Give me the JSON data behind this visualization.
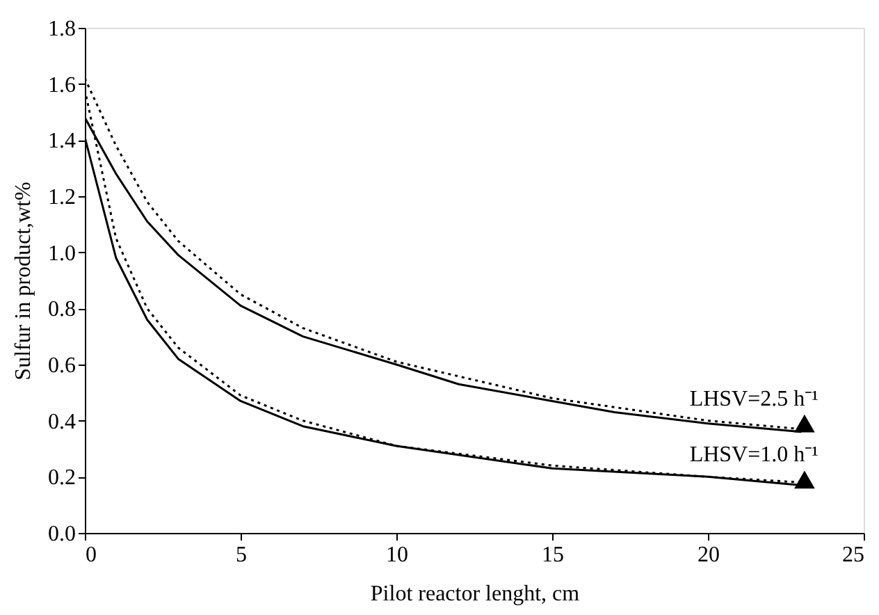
{
  "chart_data": {
    "type": "line",
    "xlabel": "Pilot reactor lenght, cm",
    "ylabel": "Sulfur  in product,wt%",
    "xlim": [
      0,
      25
    ],
    "xticks": [
      0,
      5,
      10,
      15,
      20,
      25
    ],
    "ylim": [
      0,
      1.8
    ],
    "yticks": [
      {
        "value": 0,
        "label": "0.0"
      },
      {
        "value": 0.2,
        "label": "0.2"
      },
      {
        "value": 0.4,
        "label": "0.4"
      },
      {
        "value": 0.6,
        "label": "0.6"
      },
      {
        "value": 0.8,
        "label": "0.8"
      },
      {
        "value": 1.0,
        "label": "1.0"
      },
      {
        "value": 1.2,
        "label": "1.2"
      },
      {
        "value": 1.4,
        "label": "1.4"
      },
      {
        "value": 1.6,
        "label": "1.6"
      },
      {
        "value": 1.8,
        "label": "1.8"
      }
    ],
    "grid": false,
    "series": [
      {
        "color": "#000000",
        "line_style": "solid",
        "marker": "none",
        "x": [
          0,
          1,
          2,
          3,
          5,
          7,
          10,
          12,
          15,
          17,
          20,
          23
        ],
        "values": [
          1.48,
          1.28,
          1.11,
          0.99,
          0.81,
          0.7,
          0.6,
          0.53,
          0.47,
          0.43,
          0.39,
          0.36
        ]
      },
      {
        "color": "#000000",
        "line_style": "dotted",
        "marker": "none",
        "x": [
          0,
          1,
          2,
          3,
          5,
          7,
          10,
          15,
          20,
          23
        ],
        "values": [
          1.62,
          1.38,
          1.18,
          1.04,
          0.85,
          0.73,
          0.61,
          0.48,
          0.4,
          0.37
        ]
      },
      {
        "color": "#000000",
        "line_style": "solid",
        "marker": "none",
        "x": [
          0,
          1,
          2,
          3,
          5,
          7,
          10,
          15,
          20,
          23
        ],
        "values": [
          1.41,
          0.98,
          0.76,
          0.62,
          0.47,
          0.38,
          0.31,
          0.23,
          0.2,
          0.17
        ]
      },
      {
        "color": "#000000",
        "line_style": "dotted",
        "marker": "none",
        "x": [
          0,
          1,
          2,
          3,
          5,
          7,
          10,
          15,
          20,
          23
        ],
        "values": [
          1.58,
          1.05,
          0.8,
          0.66,
          0.49,
          0.4,
          0.31,
          0.24,
          0.2,
          0.18
        ]
      },
      {
        "type": "scatter",
        "color": "#000000",
        "marker": "triangle",
        "x": [
          23.1,
          23.1
        ],
        "values": [
          0.39,
          0.19
        ]
      }
    ],
    "annotations": [
      {
        "text": "LHSV=2.5 h⁻¹",
        "x": 23.1,
        "y": 0.39
      },
      {
        "text": "LHSV=1.0 h⁻¹",
        "x": 23.1,
        "y": 0.19
      }
    ]
  }
}
